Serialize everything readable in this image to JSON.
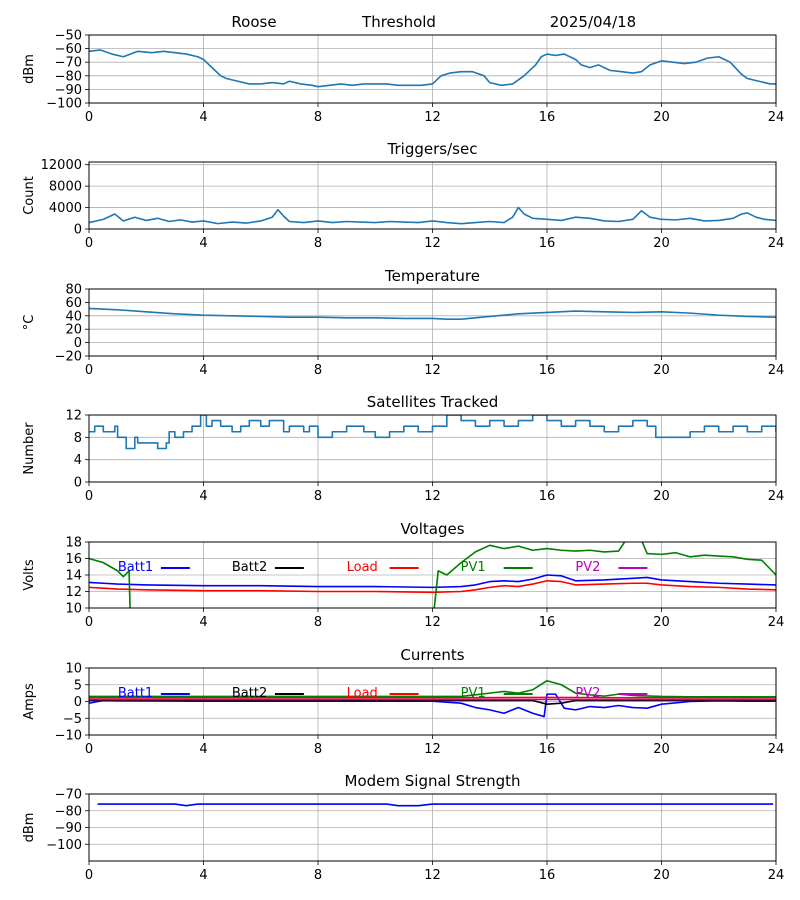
{
  "header": {
    "station": "Roose",
    "metric": "Threshold",
    "date": "2025/04/18"
  },
  "colors": {
    "series_default": "#1f77b4",
    "batt1": "#0000ff",
    "batt2": "#000000",
    "load": "#ff0000",
    "pv1": "#008000",
    "pv2": "#bf00bf",
    "grid": "#b0b0b0"
  },
  "chart_data": [
    {
      "type": "line",
      "title": "",
      "ylabel": "dBm",
      "xlim": [
        0,
        24
      ],
      "ylim": [
        -100,
        -50
      ],
      "xticks": [
        0,
        4,
        8,
        12,
        16,
        20,
        24
      ],
      "yticks": [
        -100,
        -90,
        -80,
        -70,
        -60,
        -50
      ],
      "grid": true,
      "series": [
        {
          "color": "#1f77b4",
          "x": [
            0,
            0.4,
            0.8,
            1.2,
            1.7,
            2.2,
            2.6,
            3.0,
            3.4,
            3.8,
            4.0,
            4.2,
            4.4,
            4.6,
            4.8,
            5.2,
            5.6,
            6.0,
            6.4,
            6.8,
            7.0,
            7.4,
            7.8,
            8.0,
            8.4,
            8.8,
            9.2,
            9.6,
            10.0,
            10.4,
            10.8,
            11.2,
            11.6,
            12.0,
            12.3,
            12.6,
            13.0,
            13.4,
            13.8,
            14.0,
            14.4,
            14.8,
            15.2,
            15.6,
            15.8,
            16.0,
            16.3,
            16.6,
            17.0,
            17.2,
            17.5,
            17.8,
            18.2,
            18.6,
            19.0,
            19.3,
            19.6,
            20.0,
            20.4,
            20.8,
            21.2,
            21.6,
            22.0,
            22.4,
            22.8,
            23.0,
            23.4,
            23.8,
            24.0
          ],
          "values": [
            -62,
            -61,
            -64,
            -66,
            -62,
            -63,
            -62,
            -63,
            -64,
            -66,
            -68,
            -72,
            -76,
            -80,
            -82,
            -84,
            -86,
            -86,
            -85,
            -86,
            -84,
            -86,
            -87,
            -88,
            -87,
            -86,
            -87,
            -86,
            -86,
            -86,
            -87,
            -87,
            -87,
            -86,
            -80,
            -78,
            -77,
            -77,
            -80,
            -85,
            -87,
            -86,
            -80,
            -72,
            -66,
            -64,
            -65,
            -64,
            -68,
            -72,
            -74,
            -72,
            -76,
            -77,
            -78,
            -77,
            -72,
            -69,
            -70,
            -71,
            -70,
            -67,
            -66,
            -70,
            -79,
            -82,
            -84,
            -86,
            -86
          ]
        }
      ]
    },
    {
      "type": "line",
      "title": "Triggers/sec",
      "ylabel": "Count",
      "xlim": [
        0,
        24
      ],
      "ylim": [
        0,
        12500
      ],
      "xticks": [
        0,
        4,
        8,
        12,
        16,
        20,
        24
      ],
      "yticks": [
        0,
        4000,
        8000,
        12000
      ],
      "grid": true,
      "series": [
        {
          "color": "#1f77b4",
          "x": [
            0,
            0.5,
            0.9,
            1.2,
            1.6,
            2.0,
            2.4,
            2.8,
            3.2,
            3.6,
            4.0,
            4.5,
            5.0,
            5.5,
            6.0,
            6.4,
            6.6,
            6.8,
            7.0,
            7.5,
            8.0,
            8.5,
            9.0,
            9.5,
            10.0,
            10.5,
            11.0,
            11.5,
            12.0,
            12.5,
            13.0,
            13.5,
            14.0,
            14.5,
            14.8,
            15.0,
            15.2,
            15.5,
            16.0,
            16.5,
            17.0,
            17.5,
            18.0,
            18.5,
            19.0,
            19.3,
            19.6,
            20.0,
            20.5,
            21.0,
            21.5,
            22.0,
            22.5,
            22.8,
            23.0,
            23.3,
            23.6,
            24.0
          ],
          "values": [
            1200,
            1800,
            2800,
            1500,
            2200,
            1600,
            2000,
            1400,
            1700,
            1300,
            1500,
            1000,
            1300,
            1100,
            1500,
            2200,
            3600,
            2400,
            1400,
            1200,
            1500,
            1200,
            1400,
            1300,
            1200,
            1400,
            1300,
            1200,
            1500,
            1200,
            1000,
            1200,
            1400,
            1200,
            2200,
            4000,
            2800,
            2000,
            1800,
            1600,
            2200,
            2000,
            1500,
            1400,
            1800,
            3400,
            2200,
            1800,
            1700,
            2000,
            1500,
            1600,
            2000,
            2800,
            3000,
            2200,
            1800,
            1600
          ]
        }
      ]
    },
    {
      "type": "line",
      "title": "Temperature",
      "ylabel": "°C",
      "xlim": [
        0,
        24
      ],
      "ylim": [
        -20,
        80
      ],
      "xticks": [
        0,
        4,
        8,
        12,
        16,
        20,
        24
      ],
      "yticks": [
        -20,
        0,
        20,
        40,
        60,
        80
      ],
      "grid": true,
      "series": [
        {
          "color": "#1f77b4",
          "x": [
            0,
            1,
            2,
            3,
            4,
            5,
            6,
            7,
            8,
            9,
            10,
            11,
            12,
            12.5,
            13,
            13.5,
            14,
            15,
            16,
            17,
            18,
            19,
            20,
            21,
            22,
            23,
            24
          ],
          "values": [
            51,
            49,
            46,
            43,
            41,
            40,
            39,
            38,
            38,
            37,
            37,
            36,
            36,
            35,
            35,
            37,
            39,
            43,
            45,
            47,
            46,
            45,
            46,
            44,
            41,
            39,
            38
          ]
        }
      ]
    },
    {
      "type": "line",
      "title": "Satellites Tracked",
      "ylabel": "Number",
      "xlim": [
        0,
        24
      ],
      "ylim": [
        0,
        12
      ],
      "xticks": [
        0,
        4,
        8,
        12,
        16,
        20,
        24
      ],
      "yticks": [
        0,
        4,
        8,
        12
      ],
      "grid": true,
      "series": [
        {
          "color": "#1f77b4",
          "step": true,
          "x": [
            0,
            0.2,
            0.5,
            0.9,
            1.0,
            1.3,
            1.6,
            1.7,
            2.0,
            2.4,
            2.7,
            2.8,
            3.0,
            3.3,
            3.6,
            3.9,
            4.1,
            4.3,
            4.6,
            5.0,
            5.3,
            5.6,
            6.0,
            6.3,
            6.8,
            7.0,
            7.5,
            7.7,
            8.0,
            8.5,
            9.0,
            9.6,
            10.0,
            10.5,
            11.0,
            11.5,
            12.0,
            12.5,
            13.0,
            13.5,
            14.0,
            14.5,
            15.0,
            15.5,
            16.0,
            16.5,
            17.0,
            17.5,
            18.0,
            18.5,
            19.0,
            19.5,
            19.8,
            20.5,
            21.0,
            21.5,
            22.0,
            22.5,
            23.0,
            23.5,
            24.0
          ],
          "values": [
            9,
            10,
            9,
            10,
            8,
            6,
            8,
            7,
            7,
            6,
            7,
            9,
            8,
            9,
            10,
            12,
            10,
            11,
            10,
            9,
            10,
            11,
            10,
            11,
            9,
            10,
            9,
            10,
            8,
            9,
            10,
            9,
            8,
            9,
            10,
            9,
            10,
            12,
            11,
            10,
            11,
            10,
            11,
            12,
            11,
            10,
            11,
            10,
            9,
            10,
            11,
            10,
            8,
            8,
            9,
            10,
            9,
            10,
            9,
            10,
            9
          ]
        }
      ]
    },
    {
      "type": "line",
      "title": "Voltages",
      "ylabel": "Volts",
      "xlim": [
        0,
        24
      ],
      "ylim": [
        10,
        18
      ],
      "xticks": [
        0,
        4,
        8,
        12,
        16,
        20,
        24
      ],
      "yticks": [
        10,
        12,
        14,
        16,
        18
      ],
      "grid": true,
      "legend": "inline-top",
      "series": [
        {
          "name": "Batt1",
          "color": "#0000ff",
          "x": [
            0,
            0.5,
            1,
            2,
            4,
            6,
            8,
            10,
            12,
            13,
            13.5,
            14,
            14.5,
            15,
            15.5,
            16,
            16.5,
            17,
            18,
            19,
            19.5,
            20,
            21,
            22,
            23,
            24
          ],
          "values": [
            13.1,
            13.0,
            12.9,
            12.8,
            12.7,
            12.7,
            12.6,
            12.6,
            12.5,
            12.6,
            12.8,
            13.2,
            13.3,
            13.2,
            13.5,
            14.0,
            13.9,
            13.3,
            13.4,
            13.6,
            13.7,
            13.4,
            13.2,
            13.0,
            12.9,
            12.8
          ]
        },
        {
          "name": "Batt2",
          "color": "#000000",
          "x": [],
          "values": []
        },
        {
          "name": "Load",
          "color": "#ff0000",
          "x": [
            0,
            0.5,
            1,
            2,
            4,
            6,
            8,
            10,
            12,
            13,
            13.5,
            14,
            14.5,
            15,
            15.5,
            16,
            16.5,
            17,
            18,
            19,
            19.5,
            20,
            21,
            22,
            23,
            24
          ],
          "values": [
            12.5,
            12.4,
            12.3,
            12.2,
            12.1,
            12.1,
            12.0,
            12.0,
            11.9,
            12.0,
            12.2,
            12.5,
            12.7,
            12.6,
            12.9,
            13.3,
            13.2,
            12.8,
            12.9,
            13.0,
            13.0,
            12.8,
            12.6,
            12.5,
            12.3,
            12.2
          ]
        },
        {
          "name": "PV1",
          "color": "#008000",
          "x": [
            0,
            0.5,
            1.0,
            1.2,
            1.4,
            1.45,
            12.0,
            12.2,
            12.5,
            13.0,
            13.5,
            14.0,
            14.5,
            15.0,
            15.5,
            16.0,
            16.5,
            17.0,
            17.5,
            18.0,
            18.5,
            19.0,
            19.3,
            19.5,
            20.0,
            20.5,
            21.0,
            21.5,
            22.0,
            22.5,
            23.0,
            23.5,
            24.0
          ],
          "values": [
            16.0,
            15.5,
            14.5,
            13.8,
            14.5,
            8.0,
            8.0,
            14.5,
            14.0,
            15.5,
            16.8,
            17.6,
            17.2,
            17.5,
            17.0,
            17.2,
            17.0,
            16.9,
            17.0,
            16.8,
            16.9,
            19.5,
            18.2,
            16.6,
            16.5,
            16.7,
            16.2,
            16.4,
            16.3,
            16.2,
            15.9,
            15.8,
            14.0
          ]
        },
        {
          "name": "PV2",
          "color": "#bf00bf",
          "x": [],
          "values": []
        }
      ]
    },
    {
      "type": "line",
      "title": "Currents",
      "ylabel": "Amps",
      "xlim": [
        0,
        24
      ],
      "ylim": [
        -10,
        10
      ],
      "xticks": [
        0,
        4,
        8,
        12,
        16,
        20,
        24
      ],
      "yticks": [
        -10,
        -5,
        0,
        5,
        10
      ],
      "grid": true,
      "legend": "inline-top",
      "series": [
        {
          "name": "Batt1",
          "color": "#0000ff",
          "x": [
            0,
            0.5,
            1,
            4,
            8,
            12,
            13,
            13.5,
            14,
            14.5,
            15,
            15.5,
            15.9,
            16.0,
            16.3,
            16.6,
            17,
            17.5,
            18,
            18.5,
            19,
            19.5,
            20,
            21,
            22,
            23,
            24
          ],
          "values": [
            -0.5,
            0.3,
            0.2,
            0.1,
            0.1,
            0.1,
            -0.5,
            -1.8,
            -2.5,
            -3.5,
            -1.8,
            -3.5,
            -4.5,
            2.2,
            2.2,
            -2.0,
            -2.5,
            -1.5,
            -1.8,
            -1.2,
            -1.8,
            -2.0,
            -0.8,
            0.0,
            0.2,
            0.1,
            0.1
          ]
        },
        {
          "name": "Batt2",
          "color": "#000000",
          "x": [
            0,
            4,
            8,
            12,
            15.5,
            16.0,
            16.5,
            17.0,
            20,
            24
          ],
          "values": [
            0.3,
            0.3,
            0.3,
            0.3,
            0.3,
            -0.8,
            -0.5,
            0.3,
            0.3,
            0.3
          ]
        },
        {
          "name": "Load",
          "color": "#ff0000",
          "x": [
            0,
            4,
            8,
            12,
            16,
            20,
            24
          ],
          "values": [
            1.1,
            1.1,
            1.1,
            1.1,
            1.2,
            1.1,
            1.1
          ]
        },
        {
          "name": "PV1",
          "color": "#008000",
          "x": [
            0,
            4,
            8,
            12,
            13,
            13.5,
            14,
            14.5,
            15,
            15.5,
            16,
            16.5,
            17,
            17.5,
            18,
            18.5,
            19,
            20,
            21,
            22,
            23,
            24
          ],
          "values": [
            1.5,
            1.5,
            1.5,
            1.5,
            1.5,
            2.0,
            2.5,
            3.0,
            2.5,
            3.5,
            6.2,
            5.0,
            2.5,
            2.0,
            1.6,
            2.2,
            1.8,
            1.5,
            1.4,
            1.4,
            1.4,
            1.4
          ]
        },
        {
          "name": "PV2",
          "color": "#bf00bf",
          "x": [
            0,
            4,
            8,
            12,
            16,
            20,
            24
          ],
          "values": [
            0.6,
            0.6,
            0.6,
            0.6,
            0.6,
            0.6,
            0.6
          ]
        }
      ]
    },
    {
      "type": "line",
      "title": "Modem Signal Strength",
      "ylabel": "dBm",
      "xlim": [
        0,
        24
      ],
      "ylim": [
        -110,
        -70
      ],
      "xticks": [
        0,
        4,
        8,
        12,
        16,
        20,
        24
      ],
      "yticks": [
        -100,
        -90,
        -80,
        -70
      ],
      "grid": true,
      "series": [
        {
          "color": "#0000ff",
          "x": [
            0.3,
            2,
            3,
            3.4,
            3.8,
            4.5,
            6,
            8,
            10,
            10.4,
            10.8,
            11.5,
            12.0,
            14,
            16,
            18,
            20,
            22,
            23.9
          ],
          "values": [
            -76,
            -76,
            -76,
            -77,
            -76,
            -76,
            -76,
            -76,
            -76,
            -76,
            -77,
            -77,
            -76,
            -76,
            -76,
            -76,
            -76,
            -76,
            -76
          ]
        }
      ]
    }
  ]
}
